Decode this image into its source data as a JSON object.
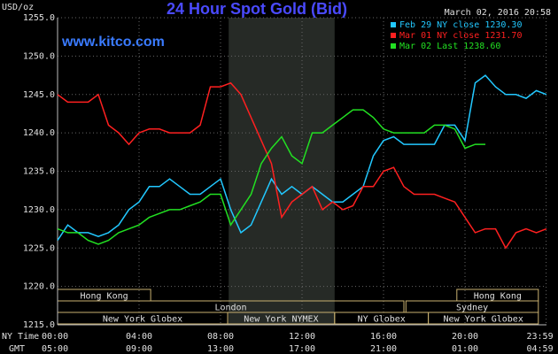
{
  "chart_data": {
    "type": "line",
    "title": "24 Hour Spot Gold (Bid)",
    "subtitle": "March 02, 2016 20:58",
    "website": "www.kitco.com",
    "y_label": "USD/oz",
    "x_label": "NY Time",
    "x2_label": "GMT",
    "xlim": [
      0,
      24
    ],
    "ylim": [
      1215,
      1255
    ],
    "yticks": [
      {
        "value": 1215,
        "label": "1215.0"
      },
      {
        "value": 1220,
        "label": "1220.0"
      },
      {
        "value": 1225,
        "label": "1225.0"
      },
      {
        "value": 1230,
        "label": "1230.0"
      },
      {
        "value": 1235,
        "label": "1235.0"
      },
      {
        "value": 1240,
        "label": "1240.0"
      },
      {
        "value": 1245,
        "label": "1245.0"
      },
      {
        "value": 1250,
        "label": "1250.0"
      },
      {
        "value": 1255,
        "label": "1255.0"
      }
    ],
    "xticks": [
      {
        "value": 0,
        "label": "00:00"
      },
      {
        "value": 4,
        "label": "04:00"
      },
      {
        "value": 8,
        "label": "08:00"
      },
      {
        "value": 12,
        "label": "12:00"
      },
      {
        "value": 16,
        "label": "16:00"
      },
      {
        "value": 20,
        "label": "20:00"
      },
      {
        "value": 23.983,
        "label": "23:59"
      }
    ],
    "x2ticks": [
      {
        "value": 0,
        "label": "05:00"
      },
      {
        "value": 4,
        "label": "09:00"
      },
      {
        "value": 8,
        "label": "13:00"
      },
      {
        "value": 12,
        "label": "17:00"
      },
      {
        "value": 16,
        "label": "21:00"
      },
      {
        "value": 20,
        "label": "01:00"
      },
      {
        "value": 23.983,
        "label": "04:59"
      }
    ],
    "grid": true,
    "highlight_span": [
      8.4,
      13.6
    ],
    "session_rows": [
      [
        {
          "name": "Hong Kong",
          "start": 0,
          "end": 4.57
        },
        {
          "name": "Hong Kong",
          "start": 19.6,
          "end": 23.6
        }
      ],
      [
        {
          "name": "London",
          "start": 0,
          "end": 17
        },
        {
          "name": "Sydney",
          "start": 17.1,
          "end": 23.6
        }
      ],
      [
        {
          "name": "New York Globex",
          "start": 0,
          "end": 8.35
        },
        {
          "name": "New York NYMEX",
          "start": 8.35,
          "end": 13.6
        },
        {
          "name": "NY Globex",
          "start": 13.6,
          "end": 18.2
        },
        {
          "name": "New York Globex",
          "start": 18.2,
          "end": 23.6
        }
      ]
    ],
    "x": [
      0,
      0.5,
      1,
      1.5,
      2,
      2.5,
      3,
      3.5,
      4,
      4.5,
      5,
      5.5,
      6,
      6.5,
      7,
      7.5,
      8,
      8.5,
      9,
      9.5,
      10,
      10.5,
      11,
      11.5,
      12,
      12.5,
      13,
      13.5,
      14,
      14.5,
      15,
      15.5,
      16,
      16.5,
      17,
      17.5,
      18,
      18.5,
      19,
      19.5,
      20,
      20.5,
      21,
      21.5,
      22,
      22.5,
      23,
      23.5,
      24
    ],
    "series": [
      {
        "name": "Feb 29 NY close 1230.30",
        "color": "#22c8ff",
        "values": [
          1226,
          1228,
          1227,
          1227,
          1226.5,
          1227,
          1228,
          1230,
          1231,
          1233,
          1233,
          1234,
          1233,
          1232,
          1232,
          1233,
          1234,
          1230,
          1227,
          1228,
          1231,
          1234,
          1232,
          1233,
          1232,
          1233,
          1232,
          1231,
          1231,
          1232,
          1233,
          1237,
          1239,
          1239.5,
          1238.5,
          1238.5,
          1238.5,
          1238.5,
          1241,
          1241,
          1239,
          1246.5,
          1247.5,
          1246,
          1245,
          1245,
          1244.5,
          1245.5,
          1245
        ]
      },
      {
        "name": "Mar 01 NY close 1231.70",
        "color": "#ff2020",
        "values": [
          1245,
          1244,
          1244,
          1244,
          1245,
          1241,
          1240,
          1238.5,
          1240,
          1240.5,
          1240.5,
          1240,
          1240,
          1240,
          1241,
          1246,
          1246,
          1246.5,
          1245,
          1242,
          1239,
          1236,
          1229,
          1231,
          1232,
          1233,
          1230,
          1231,
          1230,
          1230.5,
          1233,
          1233,
          1235,
          1235.5,
          1233,
          1232,
          1232,
          1232,
          1231.5,
          1231,
          1229,
          1227,
          1227.5,
          1227.5,
          1225,
          1227,
          1227.5,
          1227,
          1227.5
        ]
      },
      {
        "name": "Mar 02 Last 1238.60",
        "color": "#22e022",
        "values": [
          1227.5,
          1227,
          1227,
          1226,
          1225.5,
          1226,
          1227,
          1227.5,
          1228,
          1229,
          1229.5,
          1230,
          1230,
          1230.5,
          1231,
          1232,
          1232,
          1228,
          1230,
          1232,
          1236,
          1238,
          1239.5,
          1237,
          1236,
          1240,
          1240,
          1241,
          1242,
          1243,
          1243,
          1242,
          1240.5,
          1240,
          1240,
          1240,
          1240,
          1241,
          1241,
          1240.5,
          1238,
          1238.5,
          1238.5,
          null,
          null,
          null,
          null,
          null,
          null
        ]
      }
    ]
  }
}
